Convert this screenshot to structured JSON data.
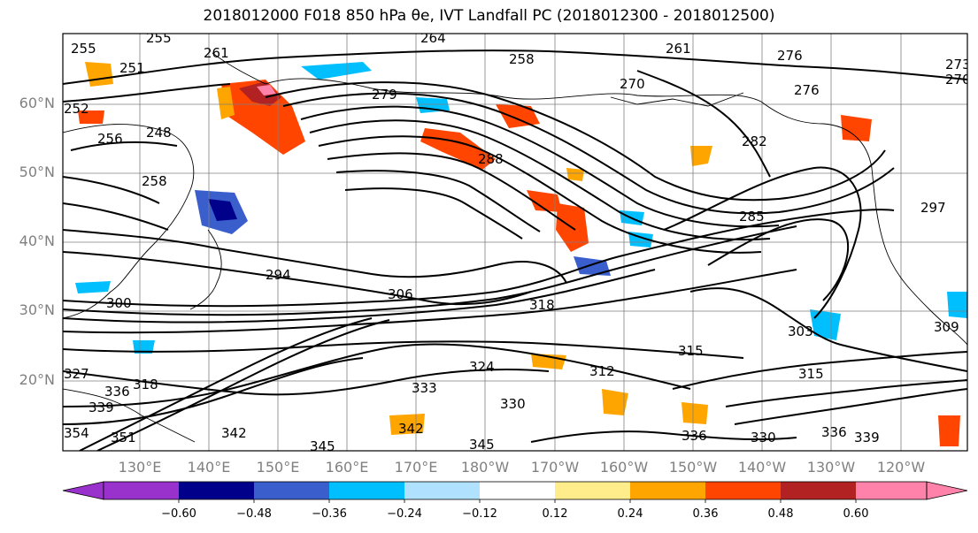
{
  "title": {
    "text": "2018012000 F018 850 hPa θe, IVT Landfall PC (2018012300 - 2018012500)"
  },
  "map": {
    "lat_labels": [
      "60°N",
      "50°N",
      "40°N",
      "30°N",
      "20°N"
    ],
    "lon_labels": [
      "130°E",
      "140°E",
      "150°E",
      "160°E",
      "170°E",
      "180°W",
      "170°W",
      "160°W",
      "150°W",
      "140°W",
      "130°W",
      "120°W"
    ],
    "contour_labels": [
      "255",
      "255",
      "264",
      "261",
      "251",
      "252",
      "256",
      "258",
      "248",
      "258",
      "270",
      "279",
      "273",
      "276",
      "276",
      "270",
      "261",
      "282",
      "288",
      "285",
      "297",
      "294",
      "306",
      "300",
      "303",
      "309",
      "318",
      "315",
      "312",
      "315",
      "324",
      "318",
      "333",
      "330",
      "330",
      "327",
      "339",
      "336",
      "339",
      "336",
      "336",
      "342",
      "345",
      "345",
      "351",
      "354",
      "342"
    ],
    "grid_color": "#7f7f7f"
  },
  "colorbar": {
    "ticks": [
      "−0.60",
      "−0.48",
      "−0.36",
      "−0.24",
      "−0.12",
      "0.12",
      "0.24",
      "0.36",
      "0.48",
      "0.60"
    ],
    "colors": [
      "#9932cc",
      "#00008b",
      "#3a5fcd",
      "#00bfff",
      "#b0e2ff",
      "#ffffff",
      "#ffec8b",
      "#ffa500",
      "#ff4500",
      "#b22222",
      "#ff82ab"
    ]
  }
}
